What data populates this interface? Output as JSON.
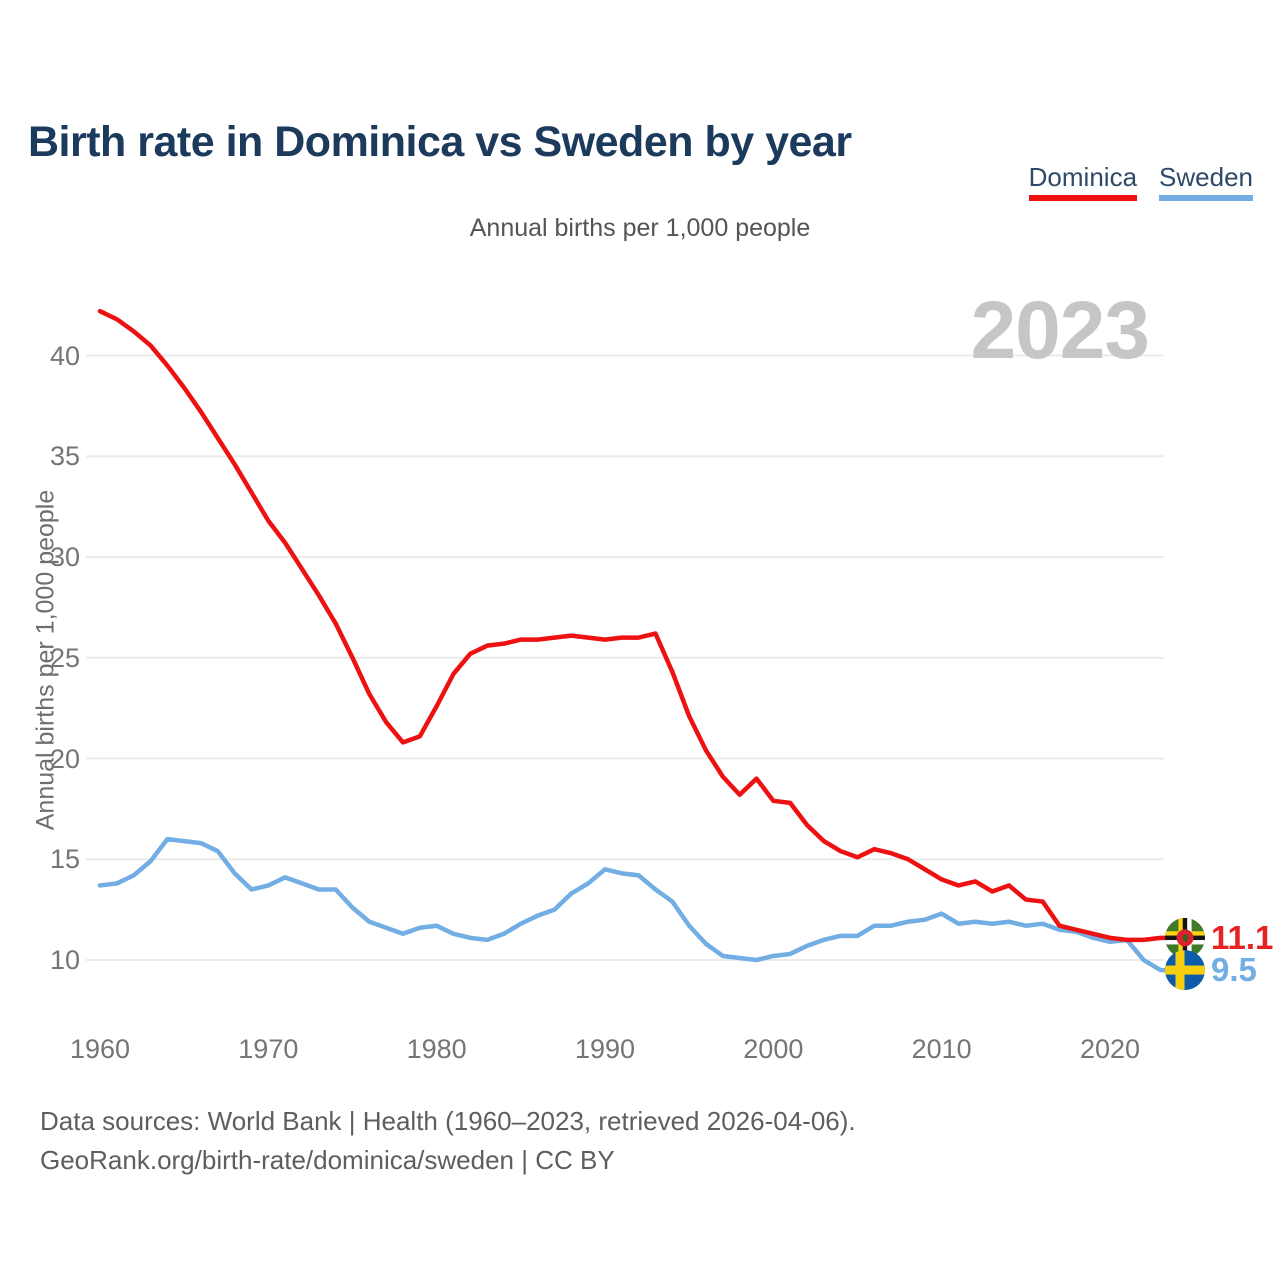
{
  "title": "Birth rate in Dominica vs Sweden by year",
  "subtitle": "Annual births per 1,000 people",
  "watermark": "2023",
  "y_axis_title": "Annual births per 1,000 people",
  "legend": {
    "items": [
      {
        "label": "Dominica",
        "color": "#ee1111"
      },
      {
        "label": "Sweden",
        "color": "#72ade4"
      }
    ]
  },
  "end_labels": [
    {
      "series": "Dominica",
      "value": "11.1",
      "color": "#e62222",
      "icon": "dominica-flag-icon"
    },
    {
      "series": "Sweden",
      "value": "9.5",
      "color": "#72ade4",
      "icon": "sweden-flag-icon"
    }
  ],
  "footer": {
    "line1": "Data sources: World Bank | Health (1960–2023, retrieved 2026-04-06).",
    "line2": "GeoRank.org/birth-rate/dominica/sweden | CC BY"
  },
  "colors": {
    "dominica_line": "#ee1111",
    "sweden_line": "#72ade4",
    "gridline": "#ebebeb",
    "title_text": "#1c3a5c",
    "tick_text": "#757575",
    "watermark_text": "#c6c6c6"
  },
  "chart_data": {
    "type": "line",
    "title": "Birth rate in Dominica vs Sweden by year",
    "subtitle": "Annual births per 1,000 people",
    "ylabel": "Annual births per 1,000 people",
    "xlabel": "",
    "grid": "horizontal-only",
    "legend_position": "top-right",
    "xlim": [
      1960,
      2023
    ],
    "ylim": [
      9,
      43
    ],
    "yticks": [
      10,
      15,
      20,
      25,
      30,
      35,
      40
    ],
    "xticks": [
      1960,
      1970,
      1980,
      1990,
      2000,
      2010,
      2020
    ],
    "x": [
      1960,
      1961,
      1962,
      1963,
      1964,
      1965,
      1966,
      1967,
      1968,
      1969,
      1970,
      1971,
      1972,
      1973,
      1974,
      1975,
      1976,
      1977,
      1978,
      1979,
      1980,
      1981,
      1982,
      1983,
      1984,
      1985,
      1986,
      1987,
      1988,
      1989,
      1990,
      1991,
      1992,
      1993,
      1994,
      1995,
      1996,
      1997,
      1998,
      1999,
      2000,
      2001,
      2002,
      2003,
      2004,
      2005,
      2006,
      2007,
      2008,
      2009,
      2010,
      2011,
      2012,
      2013,
      2014,
      2015,
      2016,
      2017,
      2018,
      2019,
      2020,
      2021,
      2022,
      2023
    ],
    "series": [
      {
        "name": "Dominica",
        "color": "#ee1111",
        "final_value": 11.1,
        "values": [
          42.2,
          41.8,
          41.2,
          40.5,
          39.5,
          38.4,
          37.2,
          35.9,
          34.6,
          33.2,
          31.8,
          30.7,
          29.4,
          28.1,
          26.7,
          25.0,
          23.2,
          21.8,
          20.8,
          21.1,
          22.6,
          24.2,
          25.2,
          25.6,
          25.7,
          25.9,
          25.9,
          26.0,
          26.1,
          26.0,
          25.9,
          26.0,
          26.0,
          26.2,
          24.3,
          22.1,
          20.4,
          19.1,
          18.2,
          19.0,
          17.9,
          17.8,
          16.7,
          15.9,
          15.4,
          15.1,
          15.5,
          15.3,
          15.0,
          14.5,
          14.0,
          13.7,
          13.9,
          13.4,
          13.7,
          13.0,
          12.9,
          11.7,
          11.5,
          11.3,
          11.1,
          11.0,
          11.0,
          11.1
        ]
      },
      {
        "name": "Sweden",
        "color": "#72ade4",
        "final_value": 9.5,
        "values": [
          13.7,
          13.8,
          14.2,
          14.9,
          16.0,
          15.9,
          15.8,
          15.4,
          14.3,
          13.5,
          13.7,
          14.1,
          13.8,
          13.5,
          13.5,
          12.6,
          11.9,
          11.6,
          11.3,
          11.6,
          11.7,
          11.3,
          11.1,
          11.0,
          11.3,
          11.8,
          12.2,
          12.5,
          13.3,
          13.8,
          14.5,
          14.3,
          14.2,
          13.5,
          12.9,
          11.7,
          10.8,
          10.2,
          10.1,
          10.0,
          10.2,
          10.3,
          10.7,
          11.0,
          11.2,
          11.2,
          11.7,
          11.7,
          11.9,
          12.0,
          12.3,
          11.8,
          11.9,
          11.8,
          11.9,
          11.7,
          11.8,
          11.5,
          11.4,
          11.1,
          10.9,
          11.0,
          10.0,
          9.5
        ]
      }
    ]
  }
}
